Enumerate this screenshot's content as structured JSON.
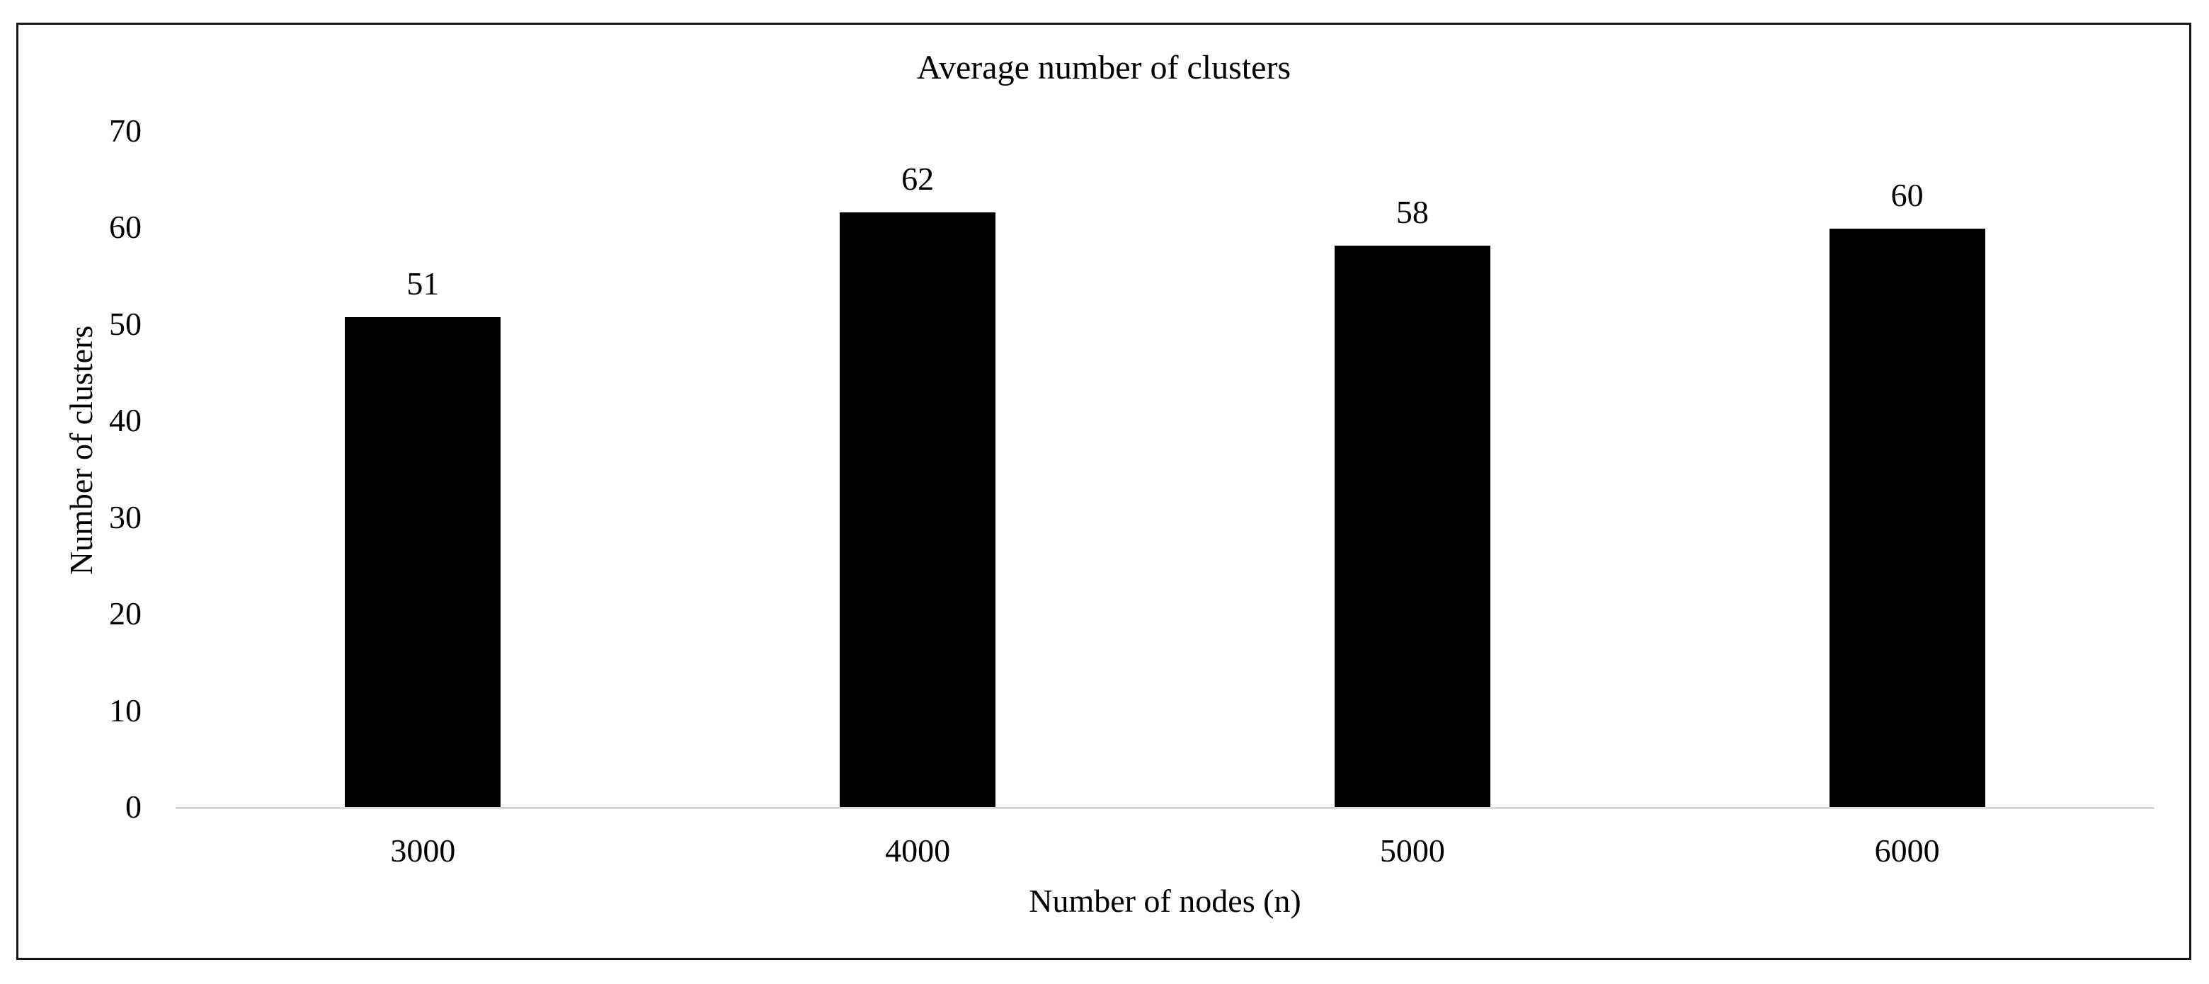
{
  "chart_data": {
    "type": "bar",
    "title": "Average number of clusters",
    "xlabel": "Number of nodes (n)",
    "ylabel": "Number of clusters",
    "categories": [
      "3000",
      "4000",
      "5000",
      "6000"
    ],
    "values": [
      51,
      62,
      58,
      60
    ],
    "bar_height_values_measured": [
      50.7,
      61.6,
      58.1,
      59.9
    ],
    "series": [
      {
        "name": "Average number of clusters",
        "values": [
          51,
          62,
          58,
          60
        ]
      }
    ],
    "yticks": [
      0,
      10,
      20,
      30,
      40,
      50,
      60,
      70
    ],
    "ylim": [
      0,
      70
    ],
    "grid": false,
    "legend_position": "none",
    "data_labels": true,
    "bar_color": "#000000",
    "baseline_color": "#d9d9d9",
    "text_color": "#000000",
    "frame_color": "#161616"
  }
}
